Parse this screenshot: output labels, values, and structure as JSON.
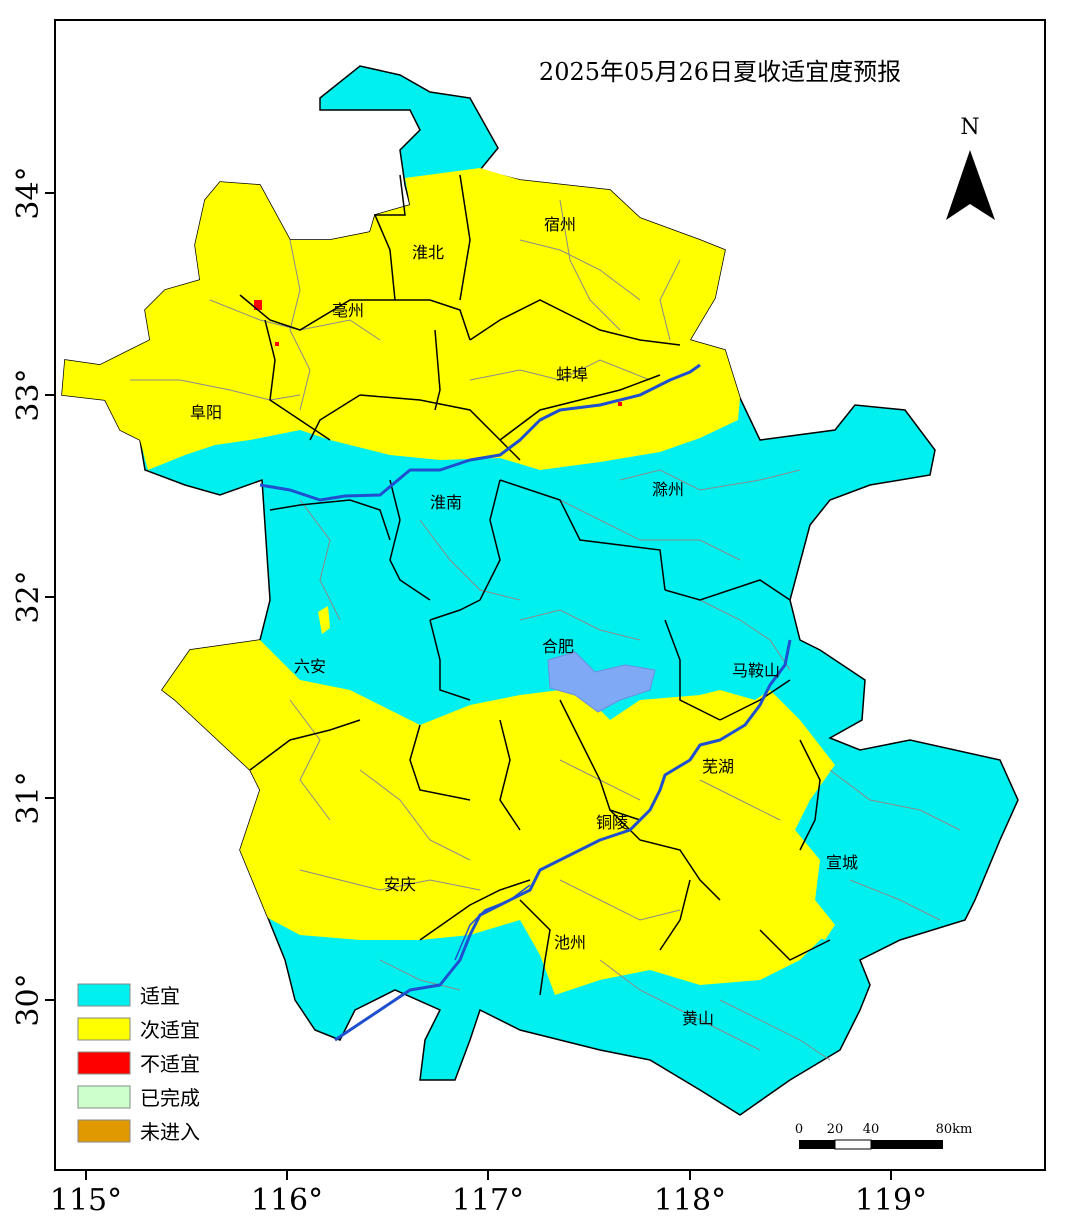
{
  "map": {
    "title": "2025年05月26日夏收适宜度预报",
    "north_label": "N",
    "lon_ticks": [
      "115°",
      "116°",
      "117°",
      "118°",
      "119°"
    ],
    "lat_ticks": [
      "30°",
      "31°",
      "32°",
      "33°",
      "34°"
    ],
    "scale_bar": {
      "labels": [
        "0",
        "20",
        "40",
        "80km"
      ]
    },
    "colors": {
      "suitable": "#00F0F0",
      "sub_suitable": "#FFFF00",
      "unsuitable": "#FF0000",
      "completed": "#CCFFCC",
      "not_entered": "#E09A00",
      "lake": "#7FA8F5",
      "river": "#1F4FCF",
      "admin_boundary": "#000000",
      "county_boundary": "#8a8a8a"
    },
    "cities": [
      {
        "name": "淮北"
      },
      {
        "name": "宿州"
      },
      {
        "name": "亳州"
      },
      {
        "name": "蚌埠"
      },
      {
        "name": "阜阳"
      },
      {
        "name": "淮南"
      },
      {
        "name": "滁州"
      },
      {
        "name": "六安"
      },
      {
        "name": "合肥"
      },
      {
        "name": "马鞍山"
      },
      {
        "name": "芜湖"
      },
      {
        "name": "铜陵"
      },
      {
        "name": "宣城"
      },
      {
        "name": "安庆"
      },
      {
        "name": "池州"
      },
      {
        "name": "黄山"
      }
    ]
  },
  "legend": {
    "items": [
      {
        "label": "适宜",
        "color": "#00F0F0"
      },
      {
        "label": "次适宜",
        "color": "#FFFF00"
      },
      {
        "label": "不适宜",
        "color": "#FF0000"
      },
      {
        "label": "已完成",
        "color": "#CCFFCC"
      },
      {
        "label": "未进入",
        "color": "#E09A00"
      }
    ]
  }
}
